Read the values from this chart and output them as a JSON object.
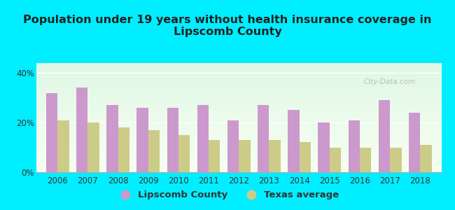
{
  "title": "Population under 19 years without health insurance coverage in\nLipscomb County",
  "years": [
    2006,
    2007,
    2008,
    2009,
    2010,
    2011,
    2012,
    2013,
    2014,
    2015,
    2016,
    2017,
    2018
  ],
  "lipscomb": [
    32,
    34,
    27,
    26,
    26,
    27,
    21,
    27,
    25,
    20,
    21,
    29,
    24
  ],
  "texas": [
    21,
    20,
    18,
    17,
    15,
    13,
    13,
    13,
    12,
    10,
    10,
    10,
    11
  ],
  "lipscomb_color": "#cc99cc",
  "texas_color": "#cccc88",
  "background_outer": "#00eeff",
  "ylabel_ticks": [
    "0%",
    "20%",
    "40%"
  ],
  "ytick_vals": [
    0,
    20,
    40
  ],
  "ylim": [
    0,
    44
  ],
  "bar_width": 0.38,
  "legend_lipscomb": "Lipscomb County",
  "legend_texas": "Texas average",
  "title_fontsize": 11.5,
  "tick_fontsize": 8.5,
  "legend_fontsize": 9.5
}
